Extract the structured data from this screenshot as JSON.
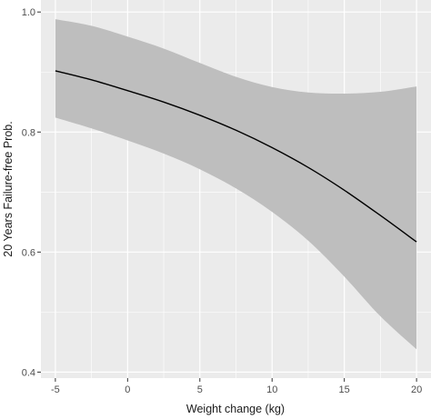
{
  "chart_data": {
    "type": "line",
    "title": "",
    "xlabel": "Weight change (kg)",
    "ylabel": "20 Years Failure-free Prob.",
    "xlim": [
      -6,
      21
    ],
    "ylim": [
      0.39,
      1.02
    ],
    "x_ticks": [
      -5,
      0,
      5,
      10,
      15,
      20
    ],
    "y_ticks": [
      0.4,
      0.6,
      0.8,
      1.0
    ],
    "x_tick_labels": [
      "-5",
      "0",
      "5",
      "10",
      "15",
      "20"
    ],
    "y_tick_labels": [
      "0.4",
      "0.6",
      "0.8",
      "1.0"
    ],
    "grid": true,
    "series": [
      {
        "x": [
          -5,
          -2.5,
          0,
          2.5,
          5,
          7.5,
          10,
          12.5,
          15,
          17.5,
          20
        ],
        "values": [
          0.902,
          0.887,
          0.869,
          0.85,
          0.828,
          0.803,
          0.774,
          0.741,
          0.703,
          0.661,
          0.617
        ],
        "lower": [
          0.824,
          0.806,
          0.786,
          0.764,
          0.738,
          0.706,
          0.667,
          0.619,
          0.559,
          0.493,
          0.438
        ],
        "upper": [
          0.988,
          0.977,
          0.959,
          0.939,
          0.915,
          0.892,
          0.875,
          0.866,
          0.864,
          0.867,
          0.876
        ]
      }
    ],
    "colors": {
      "panel": "#ebebeb",
      "grid_major": "#ffffff",
      "band": "#bebebe",
      "line": "#000000"
    }
  }
}
